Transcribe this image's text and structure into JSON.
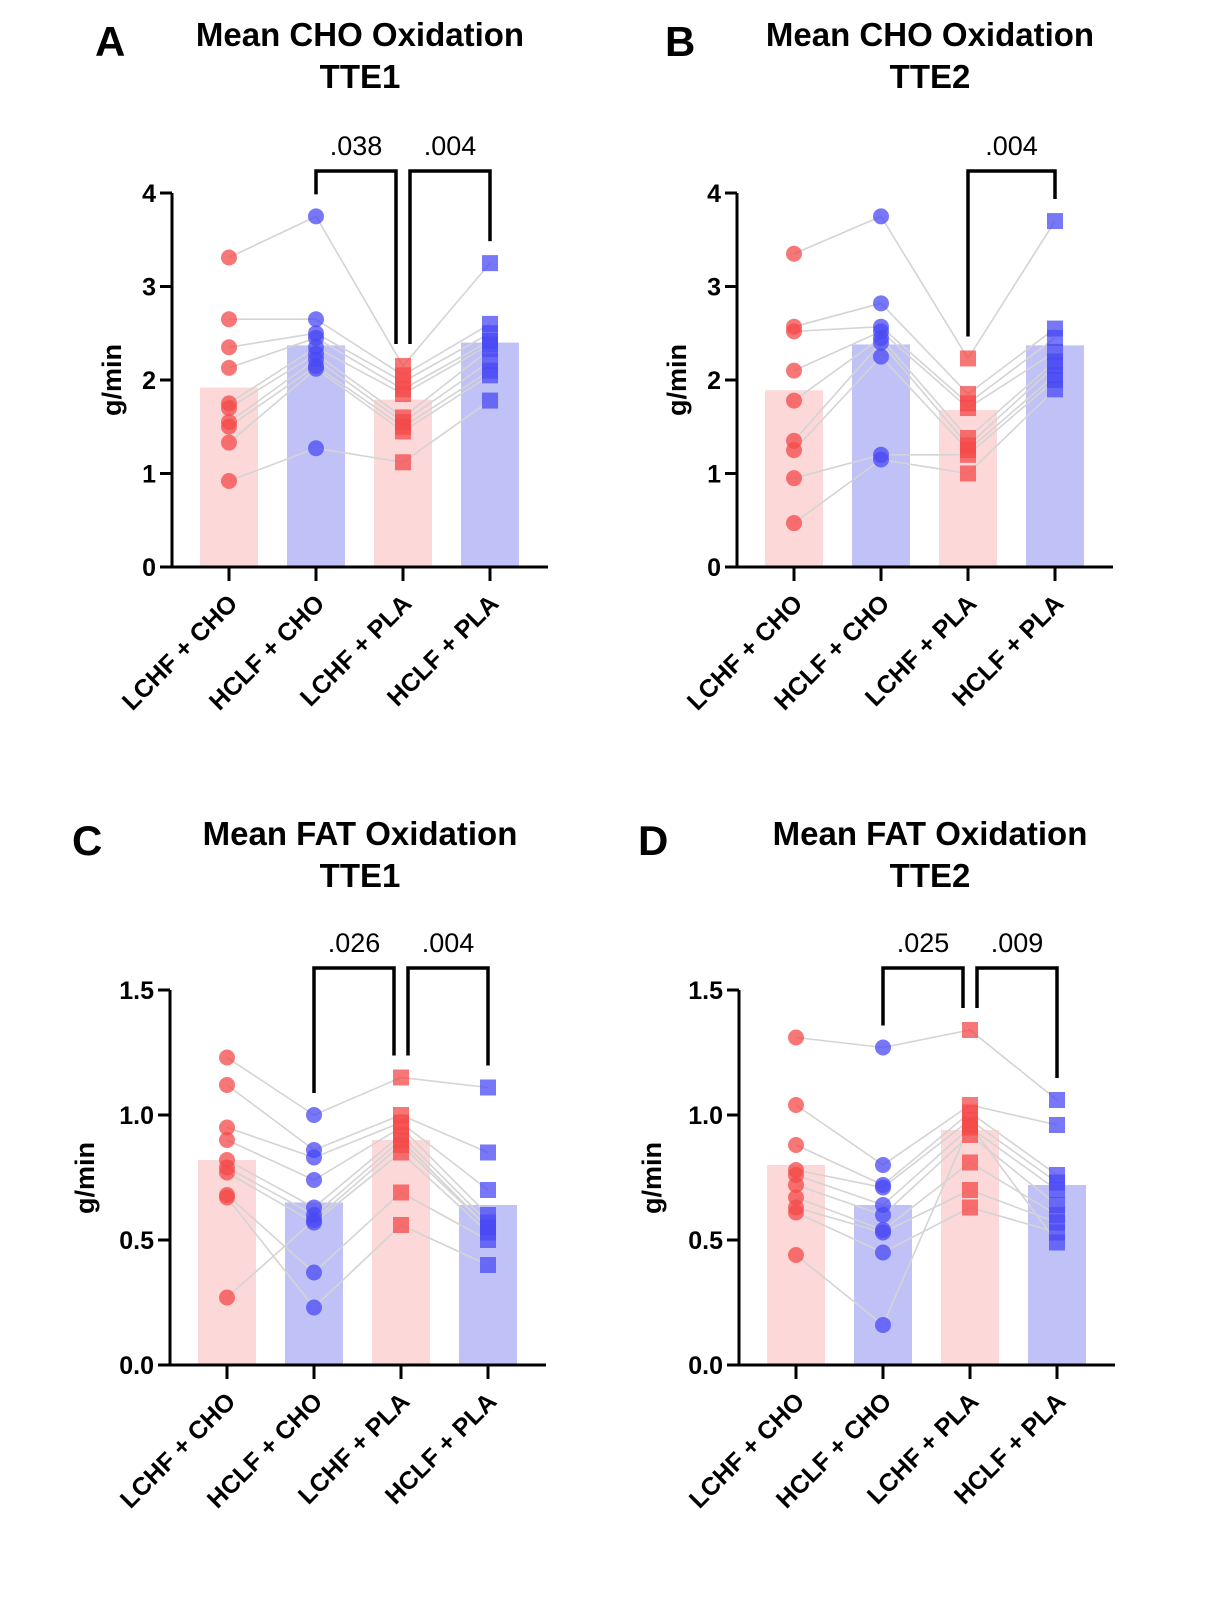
{
  "chart_data": [
    {
      "type": "bar",
      "panel": "A",
      "title": "Mean CHO Oxidation",
      "subtitle": "TTE1",
      "ylabel": "g/min",
      "xlabel": "",
      "ylim": [
        0,
        4
      ],
      "yticks": [
        0,
        1,
        2,
        3,
        4
      ],
      "ytick_labels": [
        "0",
        "1",
        "2",
        "3",
        "4"
      ],
      "categories": [
        "LCHF + CHO",
        "HCLF + CHO",
        "LCHF + PLA",
        "HCLF + PLA"
      ],
      "bar_colors": [
        "#fdd8d8",
        "#bfc1f7"
      ],
      "marker_colors": [
        "#f44a4a",
        "#4a4af4"
      ],
      "markers": [
        "circle",
        "circle",
        "square",
        "square"
      ],
      "values": [
        1.92,
        2.37,
        1.79,
        2.4
      ],
      "points": [
        [
          3.31,
          2.65,
          2.35,
          2.13,
          1.75,
          1.7,
          1.55,
          1.5,
          1.33,
          0.92
        ],
        [
          3.75,
          2.65,
          2.5,
          2.45,
          2.35,
          2.28,
          2.22,
          2.15,
          2.12,
          1.27
        ],
        [
          2.15,
          2.05,
          1.98,
          1.9,
          1.85,
          1.6,
          1.55,
          1.5,
          1.45,
          1.12
        ],
        [
          3.25,
          2.6,
          2.5,
          2.42,
          2.38,
          2.33,
          2.2,
          2.1,
          2.05,
          1.78
        ]
      ],
      "paired_lines": true,
      "comparisons": [
        {
          "from": 1,
          "to": 2,
          "label": ".038"
        },
        {
          "from": 2,
          "to": 3,
          "label": ".004"
        }
      ],
      "grid": false,
      "legend": "none"
    },
    {
      "type": "bar",
      "panel": "B",
      "title": "Mean CHO Oxidation",
      "subtitle": "TTE2",
      "ylabel": "g/min",
      "xlabel": "",
      "ylim": [
        0,
        4
      ],
      "yticks": [
        0,
        1,
        2,
        3,
        4
      ],
      "ytick_labels": [
        "0",
        "1",
        "2",
        "3",
        "4"
      ],
      "categories": [
        "LCHF + CHO",
        "HCLF + CHO",
        "LCHF + PLA",
        "HCLF + PLA"
      ],
      "bar_colors": [
        "#fdd8d8",
        "#bfc1f7"
      ],
      "marker_colors": [
        "#f44a4a",
        "#4a4af4"
      ],
      "markers": [
        "circle",
        "circle",
        "square",
        "square"
      ],
      "values": [
        1.89,
        2.38,
        1.68,
        2.37
      ],
      "points": [
        [
          3.35,
          2.57,
          2.52,
          2.1,
          1.78,
          1.35,
          1.25,
          0.95,
          0.47
        ],
        [
          3.75,
          2.82,
          2.57,
          2.52,
          2.45,
          2.4,
          2.25,
          1.2,
          1.15
        ],
        [
          2.23,
          1.85,
          1.75,
          1.7,
          1.38,
          1.3,
          1.25,
          1.2,
          1.0
        ],
        [
          3.7,
          2.55,
          2.45,
          2.3,
          2.2,
          2.15,
          2.05,
          2.0,
          1.9
        ]
      ],
      "paired_lines": true,
      "comparisons": [
        {
          "from": 2,
          "to": 3,
          "label": ".004"
        }
      ],
      "grid": false,
      "legend": "none"
    },
    {
      "type": "bar",
      "panel": "C",
      "title": "Mean FAT Oxidation",
      "subtitle": "TTE1",
      "ylabel": "g/min",
      "xlabel": "",
      "ylim": [
        0,
        1.5
      ],
      "yticks": [
        0,
        0.5,
        1.0,
        1.5
      ],
      "ytick_labels": [
        "0.0",
        "0.5",
        "1.0",
        "1.5"
      ],
      "categories": [
        "LCHF + CHO",
        "HCLF + CHO",
        "LCHF + PLA",
        "HCLF + PLA"
      ],
      "bar_colors": [
        "#fdd8d8",
        "#bfc1f7"
      ],
      "marker_colors": [
        "#f44a4a",
        "#4a4af4"
      ],
      "markers": [
        "circle",
        "circle",
        "square",
        "square"
      ],
      "values": [
        0.82,
        0.65,
        0.9,
        0.64
      ],
      "points": [
        [
          1.23,
          1.12,
          0.95,
          0.9,
          0.82,
          0.79,
          0.77,
          0.68,
          0.67,
          0.27
        ],
        [
          1.0,
          0.86,
          0.83,
          0.74,
          0.63,
          0.6,
          0.57,
          0.37,
          0.23,
          0.58
        ],
        [
          1.15,
          1.0,
          0.97,
          0.95,
          0.92,
          0.9,
          0.85,
          0.69,
          0.56,
          0.88
        ],
        [
          1.11,
          0.85,
          0.7,
          0.6,
          0.57,
          0.55,
          0.53,
          0.5,
          0.4,
          0.55
        ]
      ],
      "paired_lines": true,
      "comparisons": [
        {
          "from": 1,
          "to": 2,
          "label": ".026"
        },
        {
          "from": 2,
          "to": 3,
          "label": ".004"
        }
      ],
      "grid": false,
      "legend": "none"
    },
    {
      "type": "bar",
      "panel": "D",
      "title": "Mean FAT Oxidation",
      "subtitle": "TTE2",
      "ylabel": "g/min",
      "xlabel": "",
      "ylim": [
        0,
        1.5
      ],
      "yticks": [
        0,
        0.5,
        1.0,
        1.5
      ],
      "ytick_labels": [
        "0.0",
        "0.5",
        "1.0",
        "1.5"
      ],
      "categories": [
        "LCHF + CHO",
        "HCLF + CHO",
        "LCHF + PLA",
        "HCLF + PLA"
      ],
      "bar_colors": [
        "#fdd8d8",
        "#bfc1f7"
      ],
      "marker_colors": [
        "#f44a4a",
        "#4a4af4"
      ],
      "markers": [
        "circle",
        "circle",
        "square",
        "square"
      ],
      "values": [
        0.8,
        0.64,
        0.94,
        0.72
      ],
      "points": [
        [
          1.31,
          1.04,
          0.88,
          0.78,
          0.76,
          0.72,
          0.67,
          0.63,
          0.61,
          0.44
        ],
        [
          1.27,
          0.8,
          0.72,
          0.71,
          0.64,
          0.6,
          0.54,
          0.53,
          0.45,
          0.16
        ],
        [
          1.34,
          1.04,
          1.01,
          0.98,
          0.95,
          0.92,
          0.81,
          0.7,
          0.63,
          0.96
        ],
        [
          1.06,
          0.96,
          0.76,
          0.73,
          0.7,
          0.64,
          0.6,
          0.57,
          0.53,
          0.49
        ]
      ],
      "paired_lines": true,
      "comparisons": [
        {
          "from": 1,
          "to": 2,
          "label": ".025"
        },
        {
          "from": 2,
          "to": 3,
          "label": ".009"
        }
      ],
      "grid": false,
      "legend": "none"
    }
  ]
}
